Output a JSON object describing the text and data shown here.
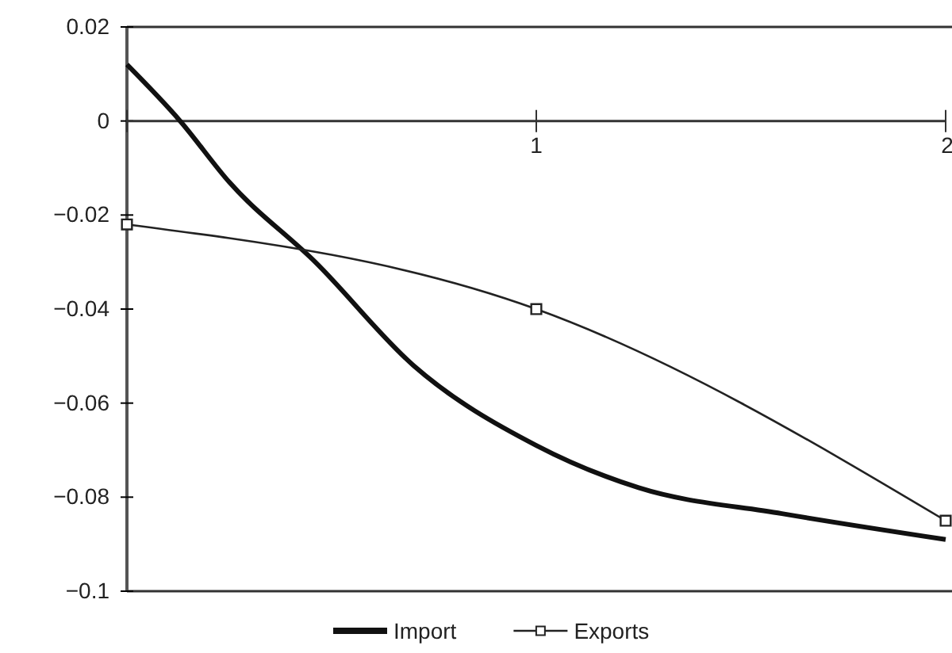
{
  "chart_data": {
    "type": "line",
    "xlim": [
      0,
      2
    ],
    "xticks": [
      {
        "value": 0,
        "label": null
      },
      1,
      2
    ],
    "ylim": [
      -0.1,
      0.02
    ],
    "yticks": [
      0.02,
      0,
      -0.02,
      -0.04,
      -0.06,
      -0.08,
      -0.1
    ],
    "legend": "bottom",
    "grid": false,
    "series": [
      {
        "name": "Import",
        "color": "#111111",
        "marker": "none",
        "x": [
          0,
          0.13,
          0.25,
          0.46,
          0.7,
          1,
          1.25,
          1.6,
          2
        ],
        "values": [
          0.012,
          0,
          -0.013,
          -0.03,
          -0.052,
          -0.069,
          -0.078,
          -0.0835,
          -0.089
        ]
      },
      {
        "name": "Exports",
        "color": "#222222",
        "marker": "square",
        "x": [
          0,
          1,
          2
        ],
        "values": [
          -0.022,
          -0.04,
          -0.085
        ]
      }
    ]
  }
}
